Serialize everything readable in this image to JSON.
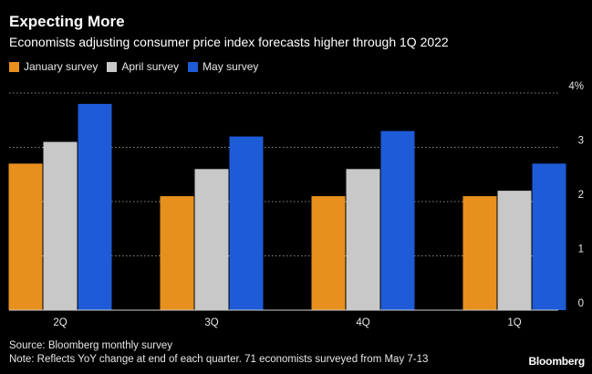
{
  "header": {
    "title": "Expecting More",
    "subtitle": "Economists adjusting consumer price index forecasts higher through 1Q 2022"
  },
  "legend": [
    {
      "label": "January survey",
      "color": "#E8901E"
    },
    {
      "label": "April survey",
      "color": "#C8C8C8"
    },
    {
      "label": "May survey",
      "color": "#1E5BD6"
    }
  ],
  "footer": {
    "source": "Source: Bloomberg monthly survey",
    "note": "Note: Reflects YoY change at end of each quarter. 71 economists surveyed from May 7-13",
    "brand": "Bloomberg"
  },
  "chart_data": {
    "type": "bar",
    "categories": [
      "2Q",
      "3Q",
      "4Q",
      "1Q"
    ],
    "series": [
      {
        "name": "January survey",
        "color": "#E8901E",
        "values": [
          2.7,
          2.1,
          2.1,
          2.1
        ]
      },
      {
        "name": "April survey",
        "color": "#C8C8C8",
        "values": [
          3.1,
          2.6,
          2.6,
          2.2
        ]
      },
      {
        "name": "May survey",
        "color": "#1E5BD6",
        "values": [
          3.8,
          3.2,
          3.3,
          2.7
        ]
      }
    ],
    "ylim": [
      0,
      4
    ],
    "yticks": [
      {
        "value": 0,
        "label": "0"
      },
      {
        "value": 1,
        "label": "1"
      },
      {
        "value": 2,
        "label": "2"
      },
      {
        "value": 3,
        "label": "3"
      },
      {
        "value": 4,
        "label": "4%"
      }
    ],
    "grid": true,
    "legend_position": "top-left"
  }
}
